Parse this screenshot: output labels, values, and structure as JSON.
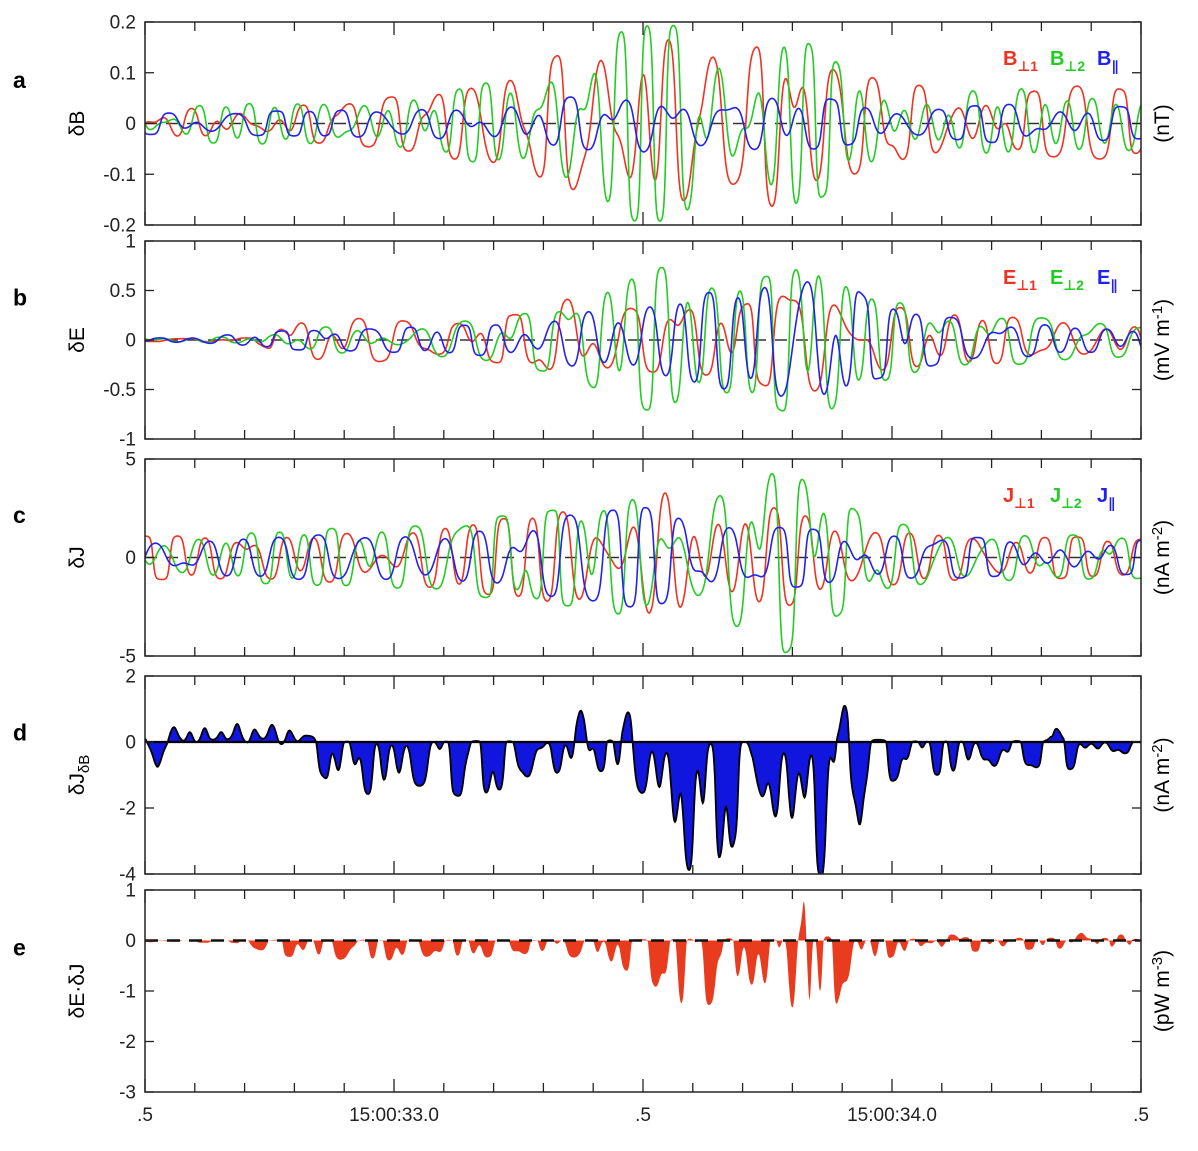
{
  "chart_data": {
    "type": "line",
    "description": "Five stacked time-series panels (a-e) of wave burst measurements",
    "x_axis": {
      "start_time": "15:00:32.5",
      "end_time": "15:00:34.5",
      "tick_times_s": [
        32.5,
        33.0,
        33.5,
        34.0,
        34.5
      ],
      "tick_labels": [
        ".5",
        "15:00:33.0",
        ".5",
        "15:00:34.0",
        ".5"
      ],
      "minor_tick_step_s": 0.1
    },
    "panels": [
      {
        "id": "a",
        "panel_letter": "a",
        "type": "line",
        "ylabel_main": "δB",
        "ylabel_sub": "",
        "unit": {
          "pre": "(nT)",
          "sup": "",
          "post": ""
        },
        "ylim": [
          -0.2,
          0.2
        ],
        "yticks": [
          -0.2,
          -0.1,
          0,
          0.1,
          0.2
        ],
        "ytick_labels": [
          "-0.2",
          "-0.1",
          "0",
          "0.1",
          "0.2"
        ],
        "legend": [
          {
            "main": "B",
            "sub": "⊥1",
            "color": "#ee3322"
          },
          {
            "main": "B",
            "sub": "⊥2",
            "color": "#22cc22"
          },
          {
            "main": "B",
            "sub": "∥",
            "color": "#2222ee"
          }
        ],
        "series": [
          {
            "name": "B_perp1",
            "color": "#ee3322",
            "seed": 3,
            "sign": 1,
            "freq_hz": [
              8,
              22
            ],
            "envelope": {
              "t": [
                32.5,
                32.7,
                32.9,
                33.05,
                33.15,
                33.3,
                33.4,
                33.5,
                33.6,
                33.7,
                33.78,
                33.85,
                33.95,
                34.1,
                34.25,
                34.4,
                34.5
              ],
              "a": [
                0.03,
                0.035,
                0.04,
                0.055,
                0.075,
                0.11,
                0.17,
                0.19,
                0.16,
                0.13,
                0.18,
                0.13,
                0.09,
                0.065,
                0.055,
                0.075,
                0.055
              ]
            }
          },
          {
            "name": "B_perp2",
            "color": "#22cc22",
            "seed": 7,
            "sign": 1,
            "freq_hz": [
              8,
              22
            ],
            "envelope": {
              "t": [
                32.5,
                32.7,
                32.9,
                33.1,
                33.25,
                33.4,
                33.5,
                33.6,
                33.7,
                33.8,
                33.9,
                34.0,
                34.15,
                34.3,
                34.4,
                34.5
              ],
              "a": [
                0.035,
                0.04,
                0.045,
                0.06,
                0.09,
                0.16,
                0.185,
                0.18,
                0.15,
                0.17,
                0.11,
                0.085,
                0.065,
                0.075,
                0.055,
                0.065
              ]
            }
          },
          {
            "name": "B_par",
            "color": "#2222ee",
            "seed": 12,
            "sign": 1,
            "freq_hz": [
              9,
              20
            ],
            "envelope": {
              "t": [
                32.5,
                32.8,
                33.0,
                33.2,
                33.35,
                33.5,
                33.65,
                33.8,
                33.95,
                34.1,
                34.3,
                34.5
              ],
              "a": [
                0.02,
                0.023,
                0.028,
                0.036,
                0.05,
                0.06,
                0.05,
                0.055,
                0.035,
                0.028,
                0.042,
                0.028
              ]
            }
          }
        ]
      },
      {
        "id": "b",
        "panel_letter": "b",
        "type": "line",
        "ylabel_main": "δE",
        "ylabel_sub": "",
        "unit": {
          "pre": "(mV m",
          "sup": "-1",
          "post": ")"
        },
        "ylim": [
          -1,
          1
        ],
        "yticks": [
          -1,
          -0.5,
          0,
          0.5,
          1
        ],
        "ytick_labels": [
          "-1",
          "-0.5",
          "0",
          "0.5",
          "1"
        ],
        "legend": [
          {
            "main": "E",
            "sub": "⊥1",
            "color": "#ee3322"
          },
          {
            "main": "E",
            "sub": "⊥2",
            "color": "#22cc22"
          },
          {
            "main": "E",
            "sub": "∥",
            "color": "#2222ee"
          }
        ],
        "series": [
          {
            "name": "E_perp1",
            "color": "#ee3322",
            "seed": 21,
            "sign": 1,
            "freq_hz": [
              8,
              20
            ],
            "envelope": {
              "t": [
                32.5,
                32.72,
                32.8,
                32.95,
                33.1,
                33.25,
                33.35,
                33.5,
                33.6,
                33.7,
                33.8,
                33.9,
                34.0,
                34.15,
                34.3,
                34.4,
                34.5
              ],
              "a": [
                0.015,
                0.02,
                0.2,
                0.22,
                0.15,
                0.24,
                0.42,
                0.3,
                0.36,
                0.33,
                0.55,
                0.5,
                0.33,
                0.27,
                0.2,
                0.24,
                0.16
              ]
            }
          },
          {
            "name": "E_perp2",
            "color": "#22cc22",
            "seed": 22,
            "sign": 1,
            "freq_hz": [
              8,
              20
            ],
            "envelope": {
              "t": [
                32.5,
                32.7,
                32.85,
                33.0,
                33.2,
                33.35,
                33.45,
                33.55,
                33.65,
                33.75,
                33.85,
                33.95,
                34.1,
                34.3,
                34.5
              ],
              "a": [
                0.02,
                0.03,
                0.13,
                0.16,
                0.22,
                0.33,
                0.6,
                0.7,
                0.5,
                0.6,
                0.8,
                0.44,
                0.27,
                0.22,
                0.16
              ]
            }
          },
          {
            "name": "E_par",
            "color": "#2222ee",
            "seed": 23,
            "sign": 1,
            "freq_hz": [
              8,
              20
            ],
            "envelope": {
              "t": [
                32.5,
                32.8,
                33.0,
                33.2,
                33.3,
                33.4,
                33.5,
                33.6,
                33.7,
                33.8,
                33.88,
                33.95,
                34.1,
                34.3,
                34.5
              ],
              "a": [
                0.015,
                0.09,
                0.12,
                0.15,
                0.22,
                0.33,
                0.38,
                0.44,
                0.5,
                0.65,
                0.7,
                0.38,
                0.22,
                0.16,
                0.11
              ]
            }
          }
        ]
      },
      {
        "id": "c",
        "panel_letter": "c",
        "type": "line",
        "ylabel_main": "δJ",
        "ylabel_sub": "",
        "unit": {
          "pre": "(nA m",
          "sup": "-2",
          "post": ")"
        },
        "ylim": [
          -5,
          5
        ],
        "yticks": [
          -5,
          0,
          5
        ],
        "ytick_labels": [
          "-5",
          "0",
          "5"
        ],
        "legend": [
          {
            "main": "J",
            "sub": "⊥1",
            "color": "#ee3322"
          },
          {
            "main": "J",
            "sub": "⊥2",
            "color": "#22cc22"
          },
          {
            "main": "J",
            "sub": "∥",
            "color": "#2222ee"
          }
        ],
        "series": [
          {
            "name": "J_perp1",
            "color": "#ee3322",
            "seed": 31,
            "sign": -1,
            "freq_hz": [
              9,
              22
            ],
            "envelope": {
              "t": [
                32.5,
                32.8,
                33.0,
                33.2,
                33.35,
                33.45,
                33.55,
                33.65,
                33.75,
                33.85,
                33.95,
                34.1,
                34.3,
                34.5
              ],
              "a": [
                1.0,
                1.2,
                1.4,
                1.8,
                2.4,
                3.5,
                4.0,
                3.1,
                2.6,
                2.1,
                1.6,
                1.2,
                1.0,
                0.9
              ]
            }
          },
          {
            "name": "J_perp2",
            "color": "#22cc22",
            "seed": 32,
            "sign": 1,
            "freq_hz": [
              9,
              22
            ],
            "envelope": {
              "t": [
                32.5,
                32.8,
                33.0,
                33.2,
                33.4,
                33.5,
                33.6,
                33.7,
                33.78,
                33.88,
                33.95,
                34.1,
                34.3,
                34.5
              ],
              "a": [
                1.1,
                1.3,
                1.5,
                1.9,
                2.4,
                3.2,
                2.9,
                3.6,
                4.6,
                2.9,
                1.9,
                1.3,
                1.1,
                1.0
              ]
            }
          },
          {
            "name": "J_par",
            "color": "#2222ee",
            "seed": 33,
            "sign": 1,
            "freq_hz": [
              8,
              19
            ],
            "envelope": {
              "t": [
                32.5,
                32.8,
                33.0,
                33.2,
                33.35,
                33.5,
                33.65,
                33.8,
                34.0,
                34.2,
                34.5
              ],
              "a": [
                0.9,
                1.1,
                1.2,
                1.4,
                2.1,
                2.4,
                1.7,
                1.4,
                1.1,
                0.9,
                0.8
              ]
            }
          }
        ]
      },
      {
        "id": "d",
        "panel_letter": "d",
        "type": "area",
        "ylabel_main": "δJ",
        "ylabel_sub": "δB",
        "unit": {
          "pre": "(nA m",
          "sup": "-2",
          "post": ")"
        },
        "ylim": [
          -4,
          2
        ],
        "yticks": [
          -4,
          -2,
          0,
          2
        ],
        "ytick_labels": [
          "-4",
          "-2",
          "0",
          "2"
        ],
        "legend": [],
        "series": [
          {
            "name": "dJ_dB",
            "color": "#1016dd",
            "outline": "#000000",
            "seed": 41,
            "sign": 1,
            "freq_hz": [
              10,
              36
            ],
            "envelope": {
              "t": [
                32.5,
                32.55,
                32.62,
                32.78,
                32.82,
                32.9,
                33.0,
                33.08,
                33.16,
                33.24,
                33.3,
                33.36,
                33.44,
                33.5,
                33.56,
                33.63,
                33.68,
                33.72,
                33.76,
                33.8,
                33.86,
                33.9,
                33.96,
                34.05,
                34.15,
                34.25,
                34.35,
                34.45,
                34.5
              ],
              "a": [
                0.3,
                0.2,
                0.15,
                0.2,
                0.9,
                1.6,
                1.7,
                1.4,
                1.8,
                1.4,
                1.1,
                1.2,
                1.2,
                2.6,
                3.4,
                4.3,
                3.0,
                1.2,
                2.6,
                3.3,
                3.8,
                2.4,
                1.6,
                1.1,
                1.3,
                0.9,
                1.0,
                0.5,
                0.4
              ]
            },
            "shift": {
              "t": [
                32.5,
                32.8,
                32.88,
                33.3,
                33.36,
                33.5,
                33.54,
                33.86,
                33.9,
                33.96,
                34.0,
                34.5
              ],
              "s": [
                0.0,
                0.0,
                0.8,
                0.8,
                0.45,
                0.45,
                0.95,
                0.95,
                0.5,
                0.5,
                0.6,
                0.6
              ]
            },
            "pos_scale": {
              "t": [
                32.5,
                32.8,
                32.9,
                34.5
              ],
              "p": [
                0.9,
                0.9,
                0.22,
                0.22
              ]
            },
            "spikes": [
              {
                "t": 32.525,
                "v": -0.75,
                "w": 0.011
              },
              {
                "t": 32.558,
                "v": 0.45,
                "w": 0.009
              },
              {
                "t": 32.59,
                "v": 0.3,
                "w": 0.008
              },
              {
                "t": 32.62,
                "v": 0.42,
                "w": 0.009
              },
              {
                "t": 32.653,
                "v": 0.3,
                "w": 0.008
              },
              {
                "t": 32.685,
                "v": 0.55,
                "w": 0.01
              },
              {
                "t": 32.72,
                "v": 0.38,
                "w": 0.009
              },
              {
                "t": 32.755,
                "v": 0.52,
                "w": 0.01
              },
              {
                "t": 32.79,
                "v": 0.35,
                "w": 0.009
              },
              {
                "t": 33.375,
                "v": 0.95,
                "w": 0.011
              },
              {
                "t": 33.47,
                "v": 0.9,
                "w": 0.011
              },
              {
                "t": 33.905,
                "v": 1.1,
                "w": 0.01
              },
              {
                "t": 33.935,
                "v": -2.5,
                "w": 0.008
              },
              {
                "t": 34.33,
                "v": 0.4,
                "w": 0.012
              }
            ]
          }
        ]
      },
      {
        "id": "e",
        "panel_letter": "e",
        "type": "area",
        "ylabel_main": "δE·δJ",
        "ylabel_sub": "",
        "unit": {
          "pre": "(pW m",
          "sup": "-3",
          "post": ")"
        },
        "ylim": [
          -3,
          1
        ],
        "yticks": [
          -3,
          -2,
          -1,
          0,
          1
        ],
        "ytick_labels": [
          "-3",
          "-2",
          "-1",
          "0",
          "1"
        ],
        "legend": [],
        "series": [
          {
            "name": "dE_dot_dJ",
            "color": "#e93b1e",
            "outline": "none",
            "seed": 51,
            "sign": 1,
            "freq_hz": [
              10,
              36
            ],
            "envelope": {
              "t": [
                32.5,
                32.68,
                32.76,
                32.84,
                32.92,
                33.0,
                33.08,
                33.16,
                33.24,
                33.32,
                33.4,
                33.46,
                33.52,
                33.58,
                33.64,
                33.7,
                33.76,
                33.8,
                33.85,
                33.9,
                33.95,
                34.0,
                34.1,
                34.2,
                34.3,
                34.4,
                34.5
              ],
              "a": [
                0.04,
                0.06,
                0.35,
                0.45,
                0.5,
                0.5,
                0.4,
                0.45,
                0.35,
                0.3,
                0.55,
                0.7,
                1.1,
                1.8,
                1.5,
                1.1,
                1.5,
                2.0,
                3.0,
                1.3,
                0.6,
                0.4,
                0.3,
                0.35,
                0.25,
                0.3,
                0.18
              ]
            },
            "shift": {
              "t": [
                32.5,
                34.02,
                34.08,
                34.5
              ],
              "s": [
                0.55,
                0.55,
                0.25,
                0.25
              ]
            },
            "pos_scale": {
              "t": [
                32.5,
                34.0,
                34.06,
                34.5
              ],
              "p": [
                0.18,
                0.18,
                0.55,
                0.55
              ]
            },
            "spikes": [
              {
                "t": 33.823,
                "v": 0.78,
                "w": 0.009
              },
              {
                "t": 34.12,
                "v": 0.12,
                "w": 0.015
              },
              {
                "t": 34.38,
                "v": 0.15,
                "w": 0.015
              },
              {
                "t": 34.46,
                "v": 0.12,
                "w": 0.012
              }
            ]
          }
        ]
      }
    ]
  }
}
